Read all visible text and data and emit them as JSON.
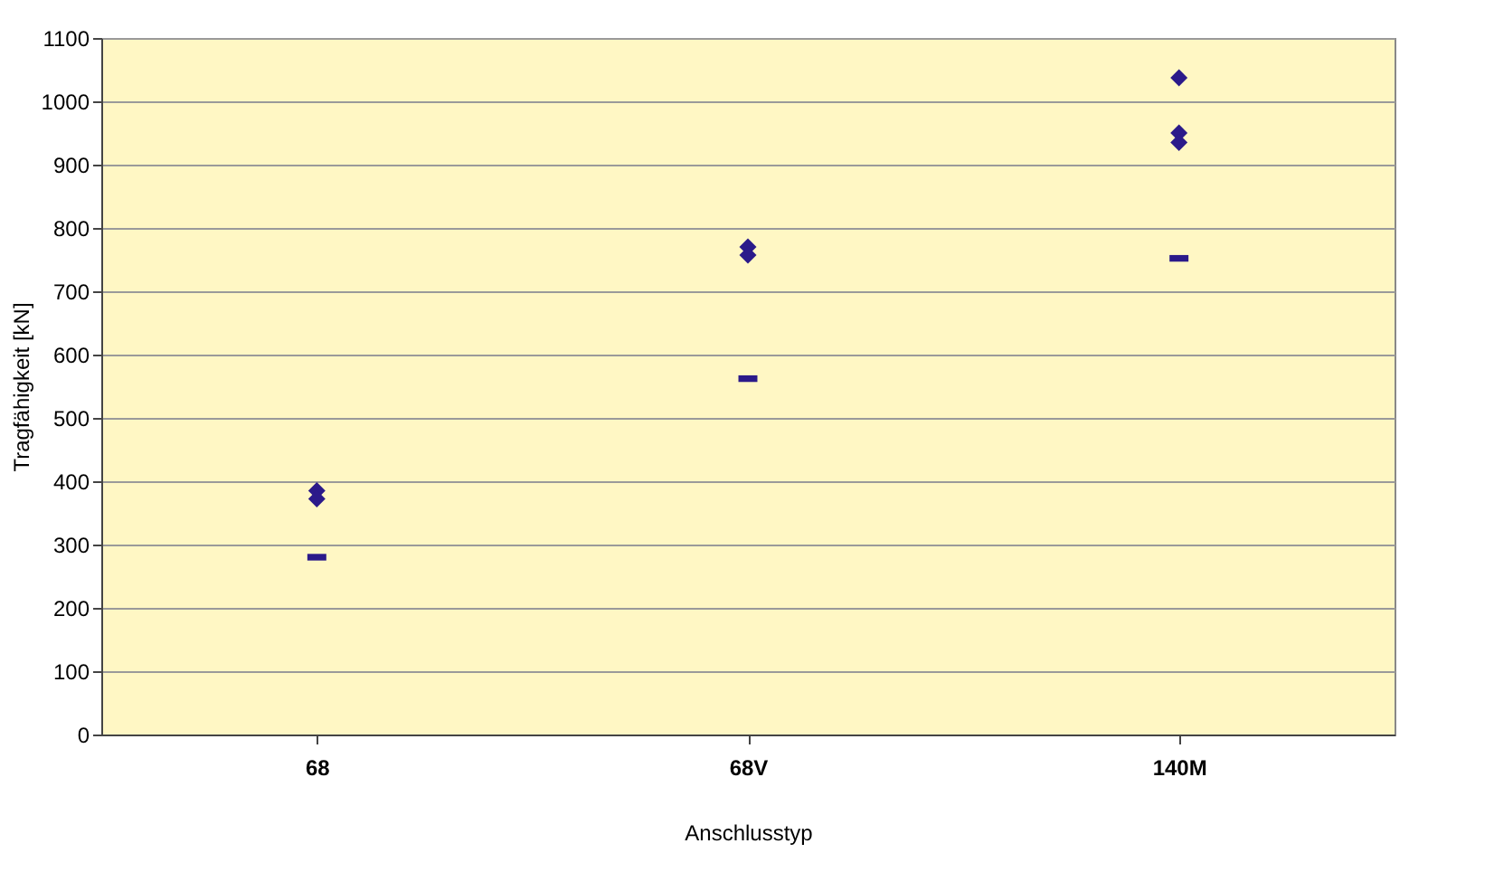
{
  "chart_data": {
    "type": "scatter",
    "xlabel": "Anschlusstyp",
    "ylabel": "Tragfähigkeit [kN]",
    "categories": [
      "68",
      "68V",
      "140M"
    ],
    "series": [
      {
        "marker": "diamond",
        "color": "#2b1a8a",
        "x": [
          "68",
          "68",
          "68V",
          "68V",
          "140M",
          "140M",
          "140M"
        ],
        "values": [
          385,
          372,
          770,
          757,
          1037,
          950,
          935
        ]
      },
      {
        "marker": "square",
        "color": "#2b1a8a",
        "x": [
          "68",
          "68V",
          "140M"
        ],
        "values": [
          280,
          562,
          752
        ]
      }
    ],
    "ylim": [
      0,
      1100
    ],
    "yticks": [
      0,
      100,
      200,
      300,
      400,
      500,
      600,
      700,
      800,
      900,
      1000,
      1100
    ],
    "grid": "y"
  }
}
